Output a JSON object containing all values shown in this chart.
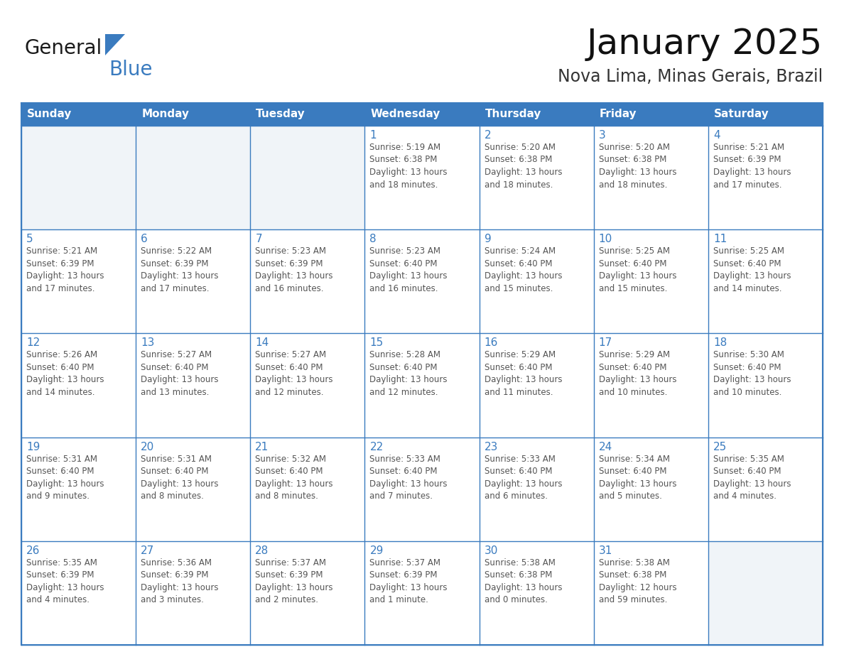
{
  "title": "January 2025",
  "subtitle": "Nova Lima, Minas Gerais, Brazil",
  "header_color": "#3a7bbf",
  "header_text_color": "#ffffff",
  "cell_bg_color": "#ffffff",
  "cell_alt_bg_color": "#f0f4f8",
  "cell_border_color": "#3a7bbf",
  "day_number_color": "#3a7bbf",
  "text_color": "#555555",
  "days_of_week": [
    "Sunday",
    "Monday",
    "Tuesday",
    "Wednesday",
    "Thursday",
    "Friday",
    "Saturday"
  ],
  "logo_text_general": "General",
  "logo_text_blue": "Blue",
  "logo_color_general": "#1a1a1a",
  "logo_color_blue": "#3a7bbf",
  "logo_triangle_color": "#3a7bbf",
  "calendar_data": [
    [
      {
        "day": null,
        "info": null
      },
      {
        "day": null,
        "info": null
      },
      {
        "day": null,
        "info": null
      },
      {
        "day": 1,
        "info": "Sunrise: 5:19 AM\nSunset: 6:38 PM\nDaylight: 13 hours\nand 18 minutes."
      },
      {
        "day": 2,
        "info": "Sunrise: 5:20 AM\nSunset: 6:38 PM\nDaylight: 13 hours\nand 18 minutes."
      },
      {
        "day": 3,
        "info": "Sunrise: 5:20 AM\nSunset: 6:38 PM\nDaylight: 13 hours\nand 18 minutes."
      },
      {
        "day": 4,
        "info": "Sunrise: 5:21 AM\nSunset: 6:39 PM\nDaylight: 13 hours\nand 17 minutes."
      }
    ],
    [
      {
        "day": 5,
        "info": "Sunrise: 5:21 AM\nSunset: 6:39 PM\nDaylight: 13 hours\nand 17 minutes."
      },
      {
        "day": 6,
        "info": "Sunrise: 5:22 AM\nSunset: 6:39 PM\nDaylight: 13 hours\nand 17 minutes."
      },
      {
        "day": 7,
        "info": "Sunrise: 5:23 AM\nSunset: 6:39 PM\nDaylight: 13 hours\nand 16 minutes."
      },
      {
        "day": 8,
        "info": "Sunrise: 5:23 AM\nSunset: 6:40 PM\nDaylight: 13 hours\nand 16 minutes."
      },
      {
        "day": 9,
        "info": "Sunrise: 5:24 AM\nSunset: 6:40 PM\nDaylight: 13 hours\nand 15 minutes."
      },
      {
        "day": 10,
        "info": "Sunrise: 5:25 AM\nSunset: 6:40 PM\nDaylight: 13 hours\nand 15 minutes."
      },
      {
        "day": 11,
        "info": "Sunrise: 5:25 AM\nSunset: 6:40 PM\nDaylight: 13 hours\nand 14 minutes."
      }
    ],
    [
      {
        "day": 12,
        "info": "Sunrise: 5:26 AM\nSunset: 6:40 PM\nDaylight: 13 hours\nand 14 minutes."
      },
      {
        "day": 13,
        "info": "Sunrise: 5:27 AM\nSunset: 6:40 PM\nDaylight: 13 hours\nand 13 minutes."
      },
      {
        "day": 14,
        "info": "Sunrise: 5:27 AM\nSunset: 6:40 PM\nDaylight: 13 hours\nand 12 minutes."
      },
      {
        "day": 15,
        "info": "Sunrise: 5:28 AM\nSunset: 6:40 PM\nDaylight: 13 hours\nand 12 minutes."
      },
      {
        "day": 16,
        "info": "Sunrise: 5:29 AM\nSunset: 6:40 PM\nDaylight: 13 hours\nand 11 minutes."
      },
      {
        "day": 17,
        "info": "Sunrise: 5:29 AM\nSunset: 6:40 PM\nDaylight: 13 hours\nand 10 minutes."
      },
      {
        "day": 18,
        "info": "Sunrise: 5:30 AM\nSunset: 6:40 PM\nDaylight: 13 hours\nand 10 minutes."
      }
    ],
    [
      {
        "day": 19,
        "info": "Sunrise: 5:31 AM\nSunset: 6:40 PM\nDaylight: 13 hours\nand 9 minutes."
      },
      {
        "day": 20,
        "info": "Sunrise: 5:31 AM\nSunset: 6:40 PM\nDaylight: 13 hours\nand 8 minutes."
      },
      {
        "day": 21,
        "info": "Sunrise: 5:32 AM\nSunset: 6:40 PM\nDaylight: 13 hours\nand 8 minutes."
      },
      {
        "day": 22,
        "info": "Sunrise: 5:33 AM\nSunset: 6:40 PM\nDaylight: 13 hours\nand 7 minutes."
      },
      {
        "day": 23,
        "info": "Sunrise: 5:33 AM\nSunset: 6:40 PM\nDaylight: 13 hours\nand 6 minutes."
      },
      {
        "day": 24,
        "info": "Sunrise: 5:34 AM\nSunset: 6:40 PM\nDaylight: 13 hours\nand 5 minutes."
      },
      {
        "day": 25,
        "info": "Sunrise: 5:35 AM\nSunset: 6:40 PM\nDaylight: 13 hours\nand 4 minutes."
      }
    ],
    [
      {
        "day": 26,
        "info": "Sunrise: 5:35 AM\nSunset: 6:39 PM\nDaylight: 13 hours\nand 4 minutes."
      },
      {
        "day": 27,
        "info": "Sunrise: 5:36 AM\nSunset: 6:39 PM\nDaylight: 13 hours\nand 3 minutes."
      },
      {
        "day": 28,
        "info": "Sunrise: 5:37 AM\nSunset: 6:39 PM\nDaylight: 13 hours\nand 2 minutes."
      },
      {
        "day": 29,
        "info": "Sunrise: 5:37 AM\nSunset: 6:39 PM\nDaylight: 13 hours\nand 1 minute."
      },
      {
        "day": 30,
        "info": "Sunrise: 5:38 AM\nSunset: 6:38 PM\nDaylight: 13 hours\nand 0 minutes."
      },
      {
        "day": 31,
        "info": "Sunrise: 5:38 AM\nSunset: 6:38 PM\nDaylight: 12 hours\nand 59 minutes."
      },
      {
        "day": null,
        "info": null
      }
    ]
  ]
}
